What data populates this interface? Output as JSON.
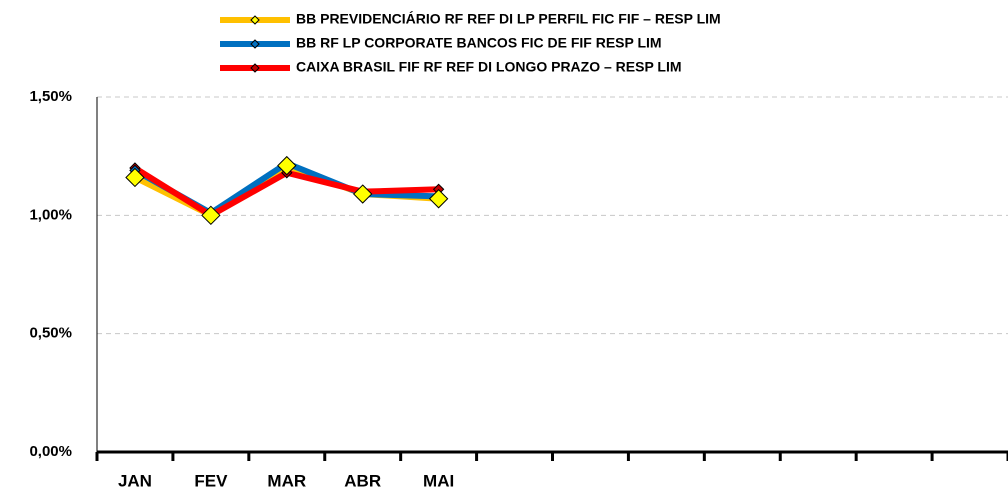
{
  "chart_data": {
    "type": "line",
    "categories": [
      "JAN",
      "FEV",
      "MAR",
      "ABR",
      "MAI",
      null,
      null,
      null,
      null,
      null,
      null,
      null
    ],
    "series": [
      {
        "name": "BB PREVIDENCIÁRIO RF REF DI LP PERFIL FIC FIF – RESP LIM",
        "color": "#FFC000",
        "marker_color": "#FFFF00",
        "values": [
          1.16,
          1.0,
          1.21,
          1.09,
          1.07,
          null,
          null,
          null,
          null,
          null,
          null,
          null
        ]
      },
      {
        "name": "BB RF LP CORPORATE BANCOS FIC DE FIF RESP LIM",
        "color": "#0070C0",
        "marker_color": "#0070C0",
        "values": [
          1.19,
          1.01,
          1.22,
          1.09,
          1.08,
          null,
          null,
          null,
          null,
          null,
          null,
          null
        ]
      },
      {
        "name": "CAIXA BRASIL FIF RF REF DI LONGO PRAZO  – RESP LIM",
        "color": "#FF0000",
        "marker_color": "#C00000",
        "values": [
          1.2,
          1.0,
          1.18,
          1.1,
          1.11,
          null,
          null,
          null,
          null,
          null,
          null,
          null
        ]
      }
    ],
    "ylim": [
      0,
      1.5
    ],
    "yticks": [
      {
        "value": 0,
        "label": "0,00%"
      },
      {
        "value": 0.5,
        "label": "0,50%"
      },
      {
        "value": 1.0,
        "label": "1,00%"
      },
      {
        "value": 1.5,
        "label": "1,50%"
      }
    ],
    "grid": true,
    "legend": "top"
  }
}
